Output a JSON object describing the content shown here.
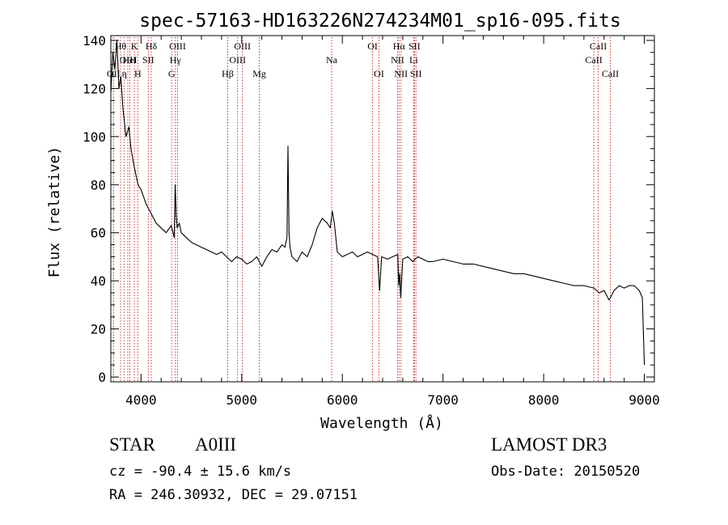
{
  "chart_data": {
    "type": "line",
    "title": "spec-57163-HD163226N274234M01_sp16-095.fits",
    "xlabel": "Wavelength (Å)",
    "ylabel": "Flux (relative)",
    "xlim": [
      3700,
      9100
    ],
    "ylim": [
      -2,
      142
    ],
    "x_ticks": [
      4000,
      5000,
      6000,
      7000,
      8000,
      9000
    ],
    "y_ticks": [
      0,
      20,
      40,
      60,
      80,
      100,
      120,
      140
    ],
    "grid": false,
    "line_color": "#000000",
    "marker_color": "#cc0000",
    "x": [
      3700,
      3720,
      3740,
      3760,
      3780,
      3800,
      3820,
      3850,
      3880,
      3900,
      3930,
      3950,
      3970,
      4000,
      4050,
      4100,
      4150,
      4200,
      4250,
      4300,
      4330,
      4340,
      4350,
      4360,
      4380,
      4400,
      4450,
      4500,
      4550,
      4600,
      4650,
      4700,
      4750,
      4800,
      4850,
      4900,
      4950,
      5000,
      5050,
      5100,
      5150,
      5200,
      5250,
      5300,
      5350,
      5400,
      5430,
      5450,
      5460,
      5470,
      5480,
      5500,
      5550,
      5600,
      5650,
      5700,
      5750,
      5800,
      5850,
      5880,
      5900,
      5920,
      5950,
      6000,
      6050,
      6100,
      6150,
      6200,
      6250,
      6300,
      6350,
      6370,
      6390,
      6450,
      6500,
      6550,
      6560,
      6570,
      6580,
      6600,
      6650,
      6700,
      6750,
      6800,
      6850,
      6900,
      7000,
      7100,
      7200,
      7300,
      7400,
      7500,
      7600,
      7700,
      7800,
      7900,
      8000,
      8100,
      8200,
      8300,
      8400,
      8500,
      8550,
      8600,
      8650,
      8700,
      8750,
      8800,
      8850,
      8900,
      8950,
      8980,
      9000
    ],
    "y": [
      118,
      135,
      128,
      140,
      120,
      125,
      112,
      100,
      104,
      95,
      88,
      84,
      80,
      78,
      72,
      68,
      64,
      62,
      60,
      63,
      58,
      80,
      67,
      62,
      64,
      60,
      58,
      56,
      55,
      54,
      53,
      52,
      51,
      52,
      50,
      48,
      50,
      49,
      47,
      48,
      50,
      46,
      50,
      53,
      52,
      55,
      54,
      58,
      96,
      60,
      54,
      50,
      48,
      52,
      50,
      55,
      62,
      66,
      64,
      62,
      69,
      64,
      52,
      50,
      51,
      52,
      50,
      51,
      52,
      51,
      50,
      36,
      50,
      49,
      50,
      51,
      38,
      43,
      33,
      49,
      50,
      48,
      50,
      49,
      48,
      48,
      49,
      48,
      47,
      47,
      46,
      45,
      44,
      43,
      43,
      42,
      41,
      40,
      39,
      38,
      38,
      37,
      35,
      36,
      32,
      36,
      38,
      37,
      38,
      38,
      36,
      33,
      5
    ],
    "lines": [
      {
        "label": "OII",
        "x": 3727,
        "row": 3
      },
      {
        "label": "Hθ",
        "x": 3797,
        "row": 1
      },
      {
        "label": "OIII",
        "x": 3869,
        "row": 2
      },
      {
        "label": "K",
        "x": 3934,
        "row": 1
      },
      {
        "label": "HeI",
        "x": 3889,
        "row": 2
      },
      {
        "label": "η",
        "x": 3835,
        "row": 3
      },
      {
        "label": "H",
        "x": 3968,
        "row": 3
      },
      {
        "label": "SII",
        "x": 4072,
        "row": 2
      },
      {
        "label": "Hδ",
        "x": 4102,
        "row": 1
      },
      {
        "label": "G",
        "x": 4304,
        "row": 3
      },
      {
        "label": "Hγ",
        "x": 4341,
        "row": 2
      },
      {
        "label": "OIII",
        "x": 4363,
        "row": 1
      },
      {
        "label": "Hβ",
        "x": 4861,
        "row": 3
      },
      {
        "label": "OIII",
        "x": 4959,
        "row": 2
      },
      {
        "label": "OIII",
        "x": 5007,
        "row": 1
      },
      {
        "label": "Mg",
        "x": 5175,
        "row": 3
      },
      {
        "label": "Na",
        "x": 5894,
        "row": 2
      },
      {
        "label": "OI",
        "x": 6300,
        "row": 1
      },
      {
        "label": "OI",
        "x": 6364,
        "row": 3
      },
      {
        "label": "NII",
        "x": 6548,
        "row": 2
      },
      {
        "label": "Hα",
        "x": 6563,
        "row": 1
      },
      {
        "label": "NII",
        "x": 6583,
        "row": 3
      },
      {
        "label": "Li",
        "x": 6708,
        "row": 2
      },
      {
        "label": "SII",
        "x": 6716,
        "row": 1
      },
      {
        "label": "SII",
        "x": 6731,
        "row": 3
      },
      {
        "label": "CaII",
        "x": 8498,
        "row": 2
      },
      {
        "label": "CaII",
        "x": 8542,
        "row": 1
      },
      {
        "label": "CaII",
        "x": 8662,
        "row": 3
      }
    ]
  },
  "annotations": {
    "class": "STAR",
    "subclass": "A0III",
    "survey": "LAMOST DR3",
    "velocity": "cz = -90.4 ± 15.6 km/s",
    "obs_date": "Obs-Date: 20150520",
    "coords": "RA = 246.30932, DEC =  29.07151"
  }
}
